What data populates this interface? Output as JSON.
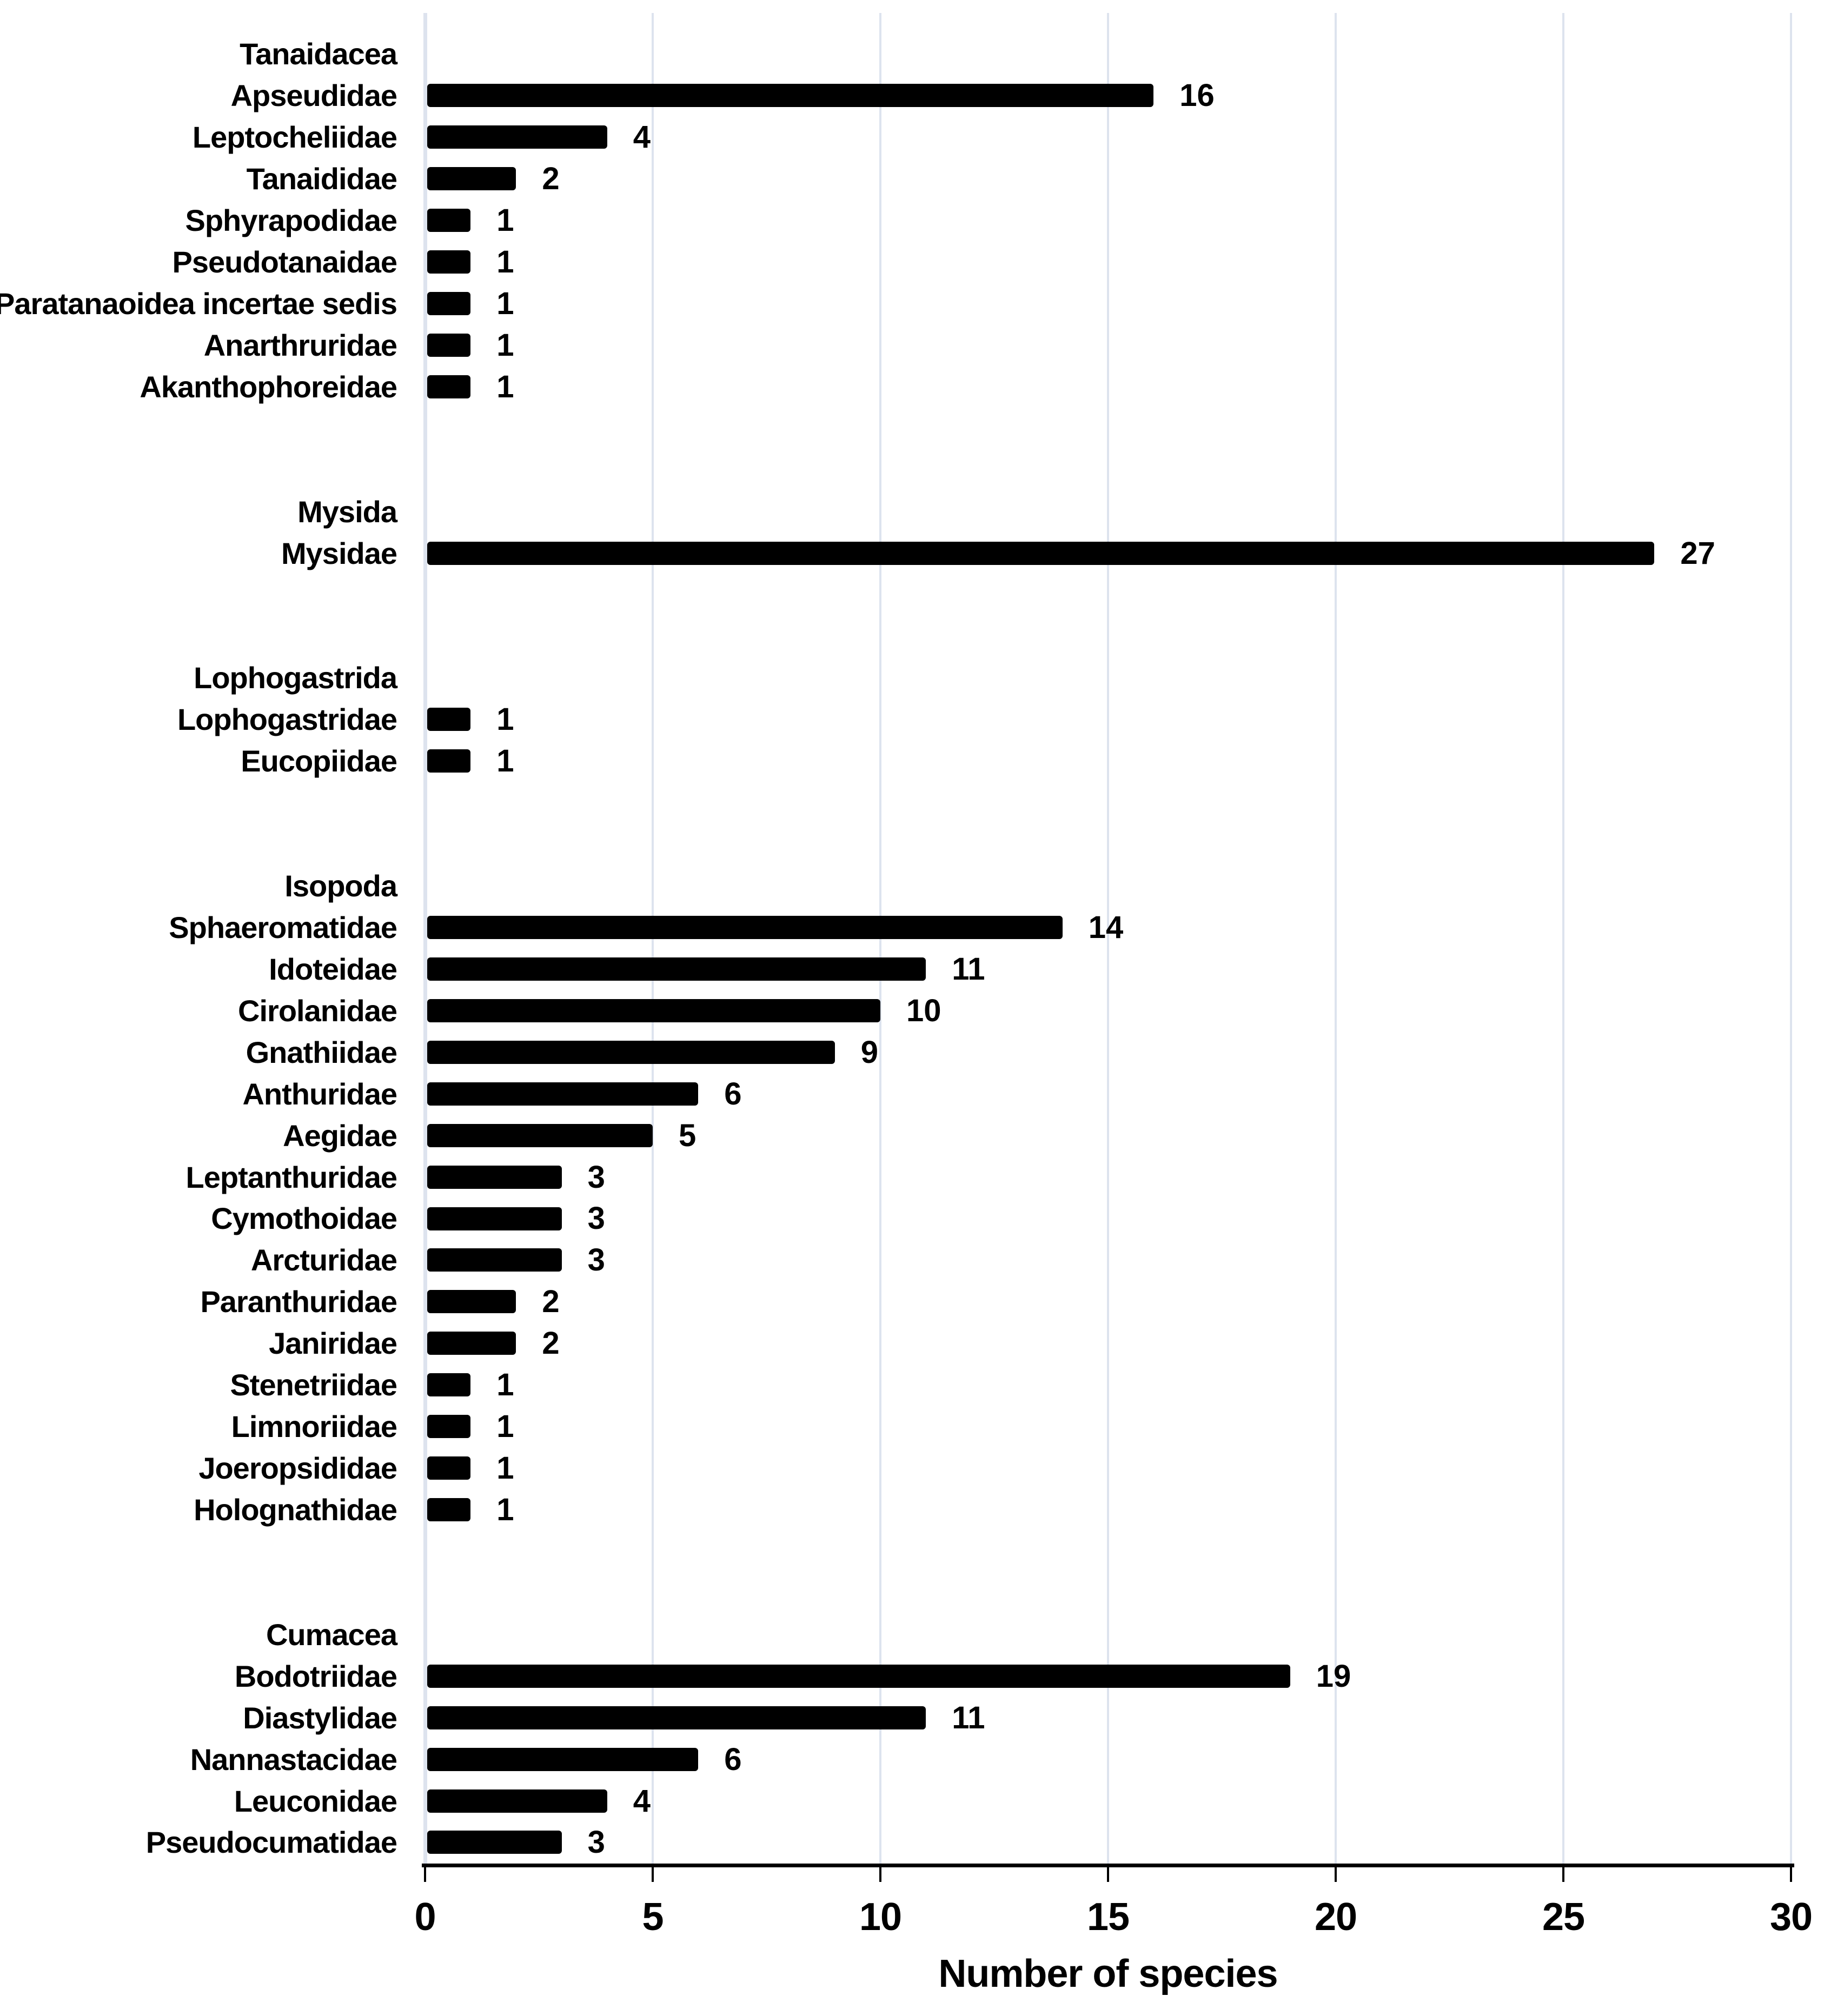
{
  "chart_data": {
    "type": "bar",
    "orientation": "horizontal",
    "title": "",
    "xlabel": "Number of  species",
    "ylabel": "",
    "xlim": [
      0,
      30
    ],
    "x_ticks": [
      0,
      5,
      10,
      15,
      20,
      25,
      30
    ],
    "grid": true,
    "legend": false,
    "bar_color": "#000000",
    "gridline_color": "#dde3ee",
    "axis_line_color": "#000000",
    "text_color": "#000000",
    "background_color": "#ffffff",
    "gap_rows_between_groups": 2,
    "groups": [
      {
        "order": "Tanaidacea",
        "families": [
          {
            "name": "Apseudidae",
            "value": 16
          },
          {
            "name": "Leptocheliidae",
            "value": 4
          },
          {
            "name": "Tanaididae",
            "value": 2
          },
          {
            "name": "Sphyrapodidae",
            "value": 1
          },
          {
            "name": "Pseudotanaidae",
            "value": 1
          },
          {
            "name": "Paratanaoidea incertae sedis",
            "value": 1
          },
          {
            "name": "Anarthruridae",
            "value": 1
          },
          {
            "name": "Akanthophoreidae",
            "value": 1
          }
        ]
      },
      {
        "order": "Mysida",
        "families": [
          {
            "name": "Mysidae",
            "value": 27
          }
        ]
      },
      {
        "order": "Lophogastrida",
        "families": [
          {
            "name": "Lophogastridae",
            "value": 1
          },
          {
            "name": "Eucopiidae",
            "value": 1
          }
        ]
      },
      {
        "order": "Isopoda",
        "families": [
          {
            "name": "Sphaeromatidae",
            "value": 14
          },
          {
            "name": "Idoteidae",
            "value": 11
          },
          {
            "name": "Cirolanidae",
            "value": 10
          },
          {
            "name": "Gnathiidae",
            "value": 9
          },
          {
            "name": "Anthuridae",
            "value": 6
          },
          {
            "name": "Aegidae",
            "value": 5
          },
          {
            "name": "Leptanthuridae",
            "value": 3
          },
          {
            "name": "Cymothoidae",
            "value": 3
          },
          {
            "name": "Arcturidae",
            "value": 3
          },
          {
            "name": "Paranthuridae",
            "value": 2
          },
          {
            "name": "Janiridae",
            "value": 2
          },
          {
            "name": "Stenetriidae",
            "value": 1
          },
          {
            "name": "Limnoriidae",
            "value": 1
          },
          {
            "name": "Joeropsididae",
            "value": 1
          },
          {
            "name": "Holognathidae",
            "value": 1
          }
        ]
      },
      {
        "order": "Cumacea",
        "families": [
          {
            "name": "Bodotriidae",
            "value": 19
          },
          {
            "name": "Diastylidae",
            "value": 11
          },
          {
            "name": "Nannastacidae",
            "value": 6
          },
          {
            "name": "Leuconidae",
            "value": 4
          },
          {
            "name": "Pseudocumatidae",
            "value": 3
          }
        ]
      }
    ]
  }
}
